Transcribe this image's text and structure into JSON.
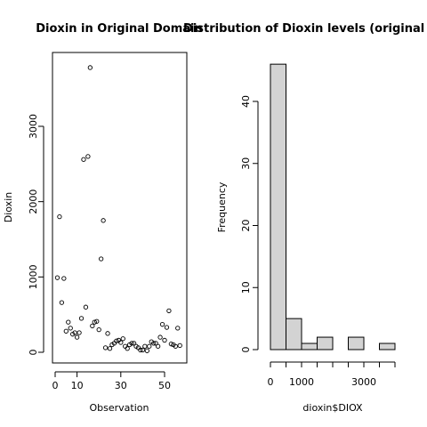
{
  "chart_data": [
    {
      "type": "scatter",
      "title": "Dioxin in Original Domain",
      "xlabel": "Observation",
      "ylabel": "Dioxin",
      "xlim": [
        0,
        58
      ],
      "ylim": [
        0,
        3800
      ],
      "x_ticks": [
        0,
        10,
        30,
        50
      ],
      "y_ticks": [
        0,
        1000,
        2000,
        3000
      ],
      "x_tick_labels": [
        "0",
        "10",
        "30",
        "50"
      ],
      "y_tick_labels": [
        "0",
        "1000",
        "2000",
        "3000"
      ],
      "grid": false,
      "series": [
        {
          "x": [
            1,
            2,
            3,
            4,
            5,
            6,
            7,
            8,
            9,
            10,
            11,
            12,
            13,
            14,
            15,
            16,
            17,
            18,
            19,
            20,
            21,
            22,
            23,
            24,
            25,
            26,
            27,
            28,
            29,
            30,
            31,
            32,
            33,
            34,
            35,
            36,
            37,
            38,
            39,
            40,
            41,
            42,
            43,
            44,
            45,
            46,
            47,
            48,
            49,
            50,
            51,
            52,
            53,
            54,
            55,
            56,
            57
          ],
          "y": [
            990,
            1800,
            660,
            980,
            280,
            400,
            320,
            240,
            260,
            200,
            260,
            450,
            2560,
            600,
            2600,
            3780,
            350,
            400,
            410,
            300,
            1240,
            1750,
            60,
            250,
            50,
            100,
            120,
            150,
            160,
            130,
            180,
            80,
            50,
            100,
            120,
            120,
            80,
            60,
            30,
            30,
            80,
            20,
            80,
            140,
            120,
            120,
            80,
            200,
            370,
            160,
            330,
            550,
            110,
            100,
            80,
            320,
            90
          ]
        }
      ]
    },
    {
      "type": "bar",
      "title": "Distribution of Dioxin levels (original domain)",
      "xlabel": "dioxin$DIOX",
      "ylabel": "Frequency",
      "xlim": [
        0,
        4000
      ],
      "ylim": [
        0,
        46
      ],
      "x_ticks": [
        0,
        1000,
        3000
      ],
      "y_ticks": [
        0,
        10,
        20,
        30,
        40
      ],
      "x_tick_labels": [
        "0",
        "1000",
        "3000"
      ],
      "y_tick_labels": [
        "0",
        "10",
        "20",
        "30",
        "40"
      ],
      "bin_edges": [
        0,
        500,
        1000,
        1500,
        2000,
        2500,
        3000,
        3500,
        4000
      ],
      "values": [
        46,
        5,
        1,
        2,
        0,
        2,
        0,
        1
      ],
      "bar_color": "#d3d3d3"
    }
  ]
}
